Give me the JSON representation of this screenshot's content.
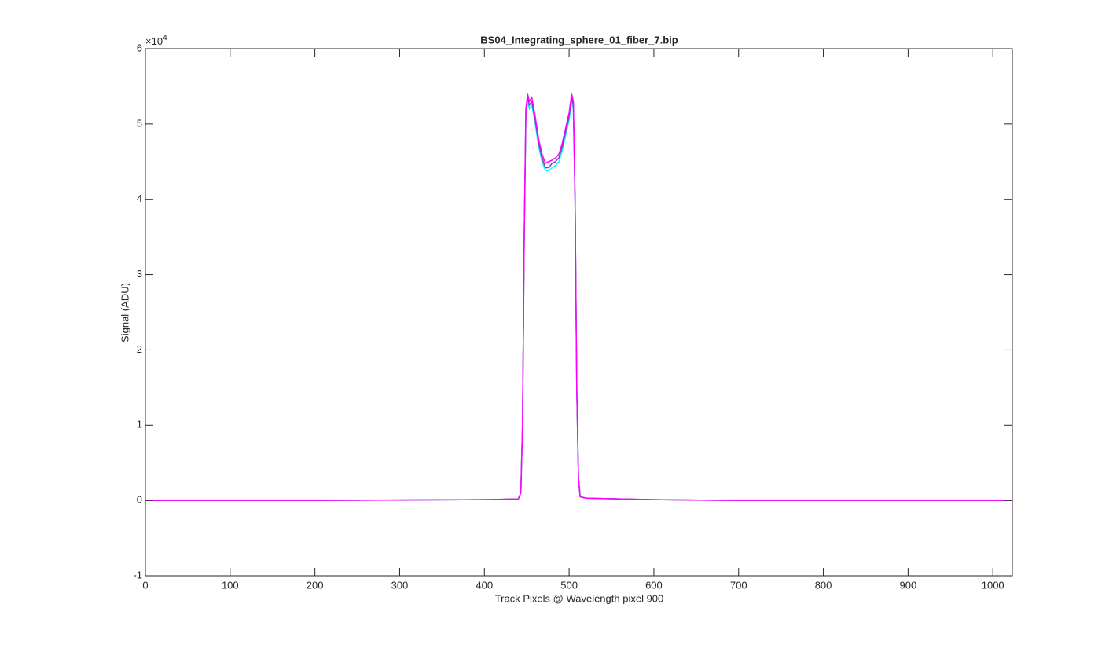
{
  "chart_data": {
    "type": "line",
    "title": "BS04_Integrating_sphere_01_fiber_7.bip",
    "x_label": "Track Pixels @ Wavelength pixel 900",
    "y_label": "Signal (ADU)",
    "y_scale_base": "×10",
    "y_scale_exponent": "4",
    "x": [
      0,
      100,
      200,
      300,
      400,
      440,
      443,
      445,
      447,
      449,
      451,
      453,
      456,
      460,
      464,
      468,
      472,
      476,
      480,
      484,
      488,
      492,
      496,
      500,
      503,
      505,
      507,
      509,
      511,
      513,
      520,
      600,
      700,
      800,
      900,
      1023
    ],
    "series": [
      {
        "color": "#00ffff",
        "values": [
          0,
          0,
          0,
          0.005,
          0.01,
          0.02,
          0.1,
          1.0,
          3.5,
          5.1,
          5.3,
          5.2,
          5.25,
          5.0,
          4.7,
          4.5,
          4.38,
          4.38,
          4.42,
          4.45,
          4.5,
          4.65,
          4.85,
          5.05,
          5.3,
          5.2,
          4.0,
          1.5,
          0.3,
          0.05,
          0.03,
          0.01,
          0,
          0,
          0,
          0
        ]
      },
      {
        "color": "#7f3fbf",
        "values": [
          0,
          0,
          0,
          0.005,
          0.01,
          0.02,
          0.1,
          1.0,
          3.5,
          5.2,
          5.35,
          5.25,
          5.3,
          5.05,
          4.75,
          4.55,
          4.42,
          4.42,
          4.48,
          4.5,
          4.55,
          4.7,
          4.9,
          5.1,
          5.35,
          5.25,
          4.0,
          1.5,
          0.3,
          0.05,
          0.03,
          0.01,
          0,
          0,
          0,
          0
        ]
      },
      {
        "color": "#ff00ff",
        "values": [
          0,
          0,
          0,
          0.005,
          0.01,
          0.02,
          0.1,
          1.0,
          3.5,
          5.2,
          5.4,
          5.3,
          5.35,
          5.1,
          4.8,
          4.6,
          4.48,
          4.5,
          4.52,
          4.55,
          4.6,
          4.75,
          4.95,
          5.15,
          5.4,
          5.3,
          4.0,
          1.5,
          0.3,
          0.05,
          0.03,
          0.01,
          0,
          0,
          0,
          0
        ]
      }
    ],
    "xlim": [
      0,
      1023
    ],
    "xticks": [
      0,
      100,
      200,
      300,
      400,
      500,
      600,
      700,
      800,
      900,
      1000
    ],
    "ylim": [
      -1,
      6
    ],
    "yticks": [
      -1,
      0,
      1,
      2,
      3,
      4,
      5,
      6
    ],
    "grid": false
  }
}
